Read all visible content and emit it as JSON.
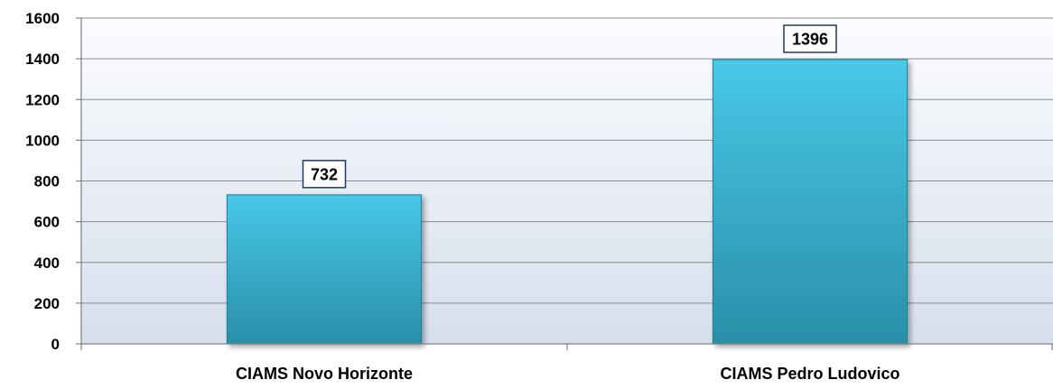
{
  "chart_data": {
    "type": "bar",
    "title": "",
    "xlabel": "",
    "ylabel": "",
    "categories": [
      "CIAMS Novo Horizonte",
      "CIAMS Pedro Ludovico"
    ],
    "values": [
      732,
      1396
    ],
    "data_labels": [
      "732",
      "1396"
    ],
    "ylim": [
      0,
      1600
    ],
    "yticks": [
      0,
      200,
      400,
      600,
      800,
      1000,
      1200,
      1400,
      1600
    ],
    "ytick_labels": [
      "0",
      "200",
      "400",
      "600",
      "800",
      "1000",
      "1200",
      "1400",
      "1600"
    ],
    "grid": true,
    "legend": "none",
    "colors": {
      "bar_top": "#48C8E8",
      "bar_bottom": "#2A8FA8",
      "bar_edge": "#1F7F96",
      "plot_bg_top": "#FBFCFE",
      "plot_bg_bottom": "#D7DFEC",
      "gridline": "#8C8C8C",
      "axis": "#808080",
      "label_box_border": "#1F3864"
    }
  }
}
